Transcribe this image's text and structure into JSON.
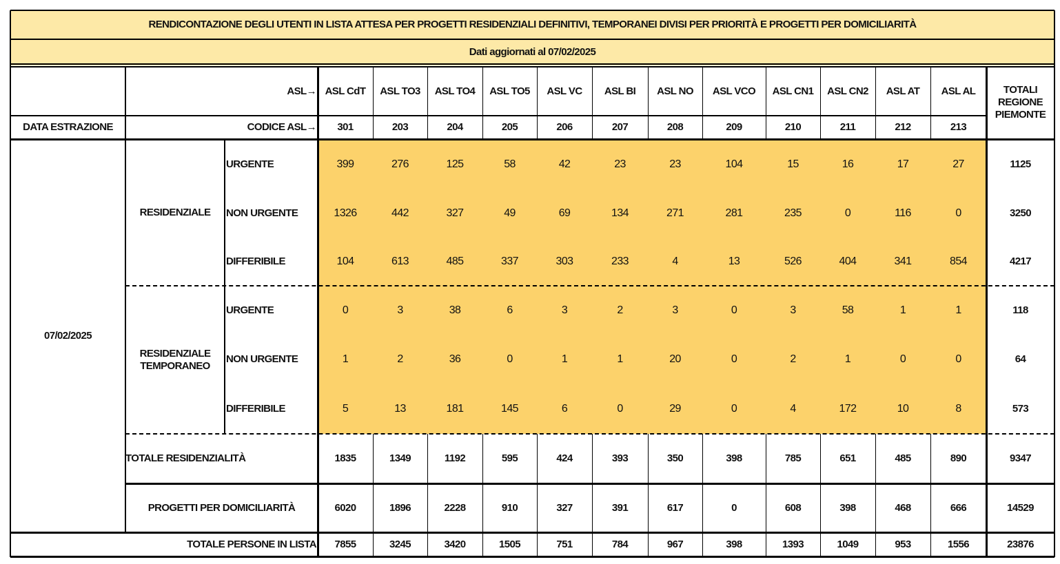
{
  "title": "RENDICONTAZIONE DEGLI UTENTI IN LISTA ATTESA  PER PROGETTI RESIDENZIALI DEFINITIVI, TEMPORANEI DIVISI PER PRIORITÀ E PROGETTI PER DOMICILIARITÀ",
  "subtitle": "Dati aggiornati al 07/02/2025",
  "header": {
    "asl_label": "ASL→",
    "code_label": "CODICE ASL→",
    "date_label": "DATA ESTRAZIONE",
    "total_label": "TOTALI REGIONE PIEMONTE",
    "asl": [
      "ASL CdT",
      "ASL TO3",
      "ASL TO4",
      "ASL TO5",
      "ASL VC",
      "ASL BI",
      "ASL NO",
      "ASL VCO",
      "ASL CN1",
      "ASL CN2",
      "ASL AT",
      "ASL AL"
    ],
    "codes": [
      301,
      203,
      204,
      205,
      206,
      207,
      208,
      209,
      210,
      211,
      212,
      213
    ]
  },
  "date": "07/02/2025",
  "groups": [
    {
      "label": "RESIDENZIALE",
      "rows": [
        {
          "priority": "URGENTE",
          "values": [
            399,
            276,
            125,
            58,
            42,
            23,
            23,
            104,
            15,
            16,
            17,
            27
          ],
          "total": 1125
        },
        {
          "priority": "NON URGENTE",
          "values": [
            1326,
            442,
            327,
            49,
            69,
            134,
            271,
            281,
            235,
            0,
            116,
            0
          ],
          "total": 3250
        },
        {
          "priority": "DIFFERIBILE",
          "values": [
            104,
            613,
            485,
            337,
            303,
            233,
            4,
            13,
            526,
            404,
            341,
            854
          ],
          "total": 4217
        }
      ]
    },
    {
      "label": "RESIDENZIALE TEMPORANEO",
      "rows": [
        {
          "priority": "URGENTE",
          "values": [
            0,
            3,
            38,
            6,
            3,
            2,
            3,
            0,
            3,
            58,
            1,
            1
          ],
          "total": 118
        },
        {
          "priority": "NON URGENTE",
          "values": [
            1,
            2,
            36,
            0,
            1,
            1,
            20,
            0,
            2,
            1,
            0,
            0
          ],
          "total": 64
        },
        {
          "priority": "DIFFERIBILE",
          "values": [
            5,
            13,
            181,
            145,
            6,
            0,
            29,
            0,
            4,
            172,
            10,
            8
          ],
          "total": 573
        }
      ]
    }
  ],
  "summary_rows": [
    {
      "label": "TOTALE RESIDENZIALITÀ",
      "values": [
        1835,
        1349,
        1192,
        595,
        424,
        393,
        350,
        398,
        785,
        651,
        485,
        890
      ],
      "total": 9347
    },
    {
      "label": "PROGETTI PER DOMICILIARITÀ",
      "values": [
        6020,
        1896,
        2228,
        910,
        327,
        391,
        617,
        0,
        608,
        398,
        468,
        666
      ],
      "total": 14529
    },
    {
      "label": "TOTALE PERSONE IN LISTA",
      "values": [
        7855,
        3245,
        3420,
        1505,
        751,
        784,
        967,
        398,
        1393,
        1049,
        953,
        1556
      ],
      "total": 23876
    }
  ]
}
